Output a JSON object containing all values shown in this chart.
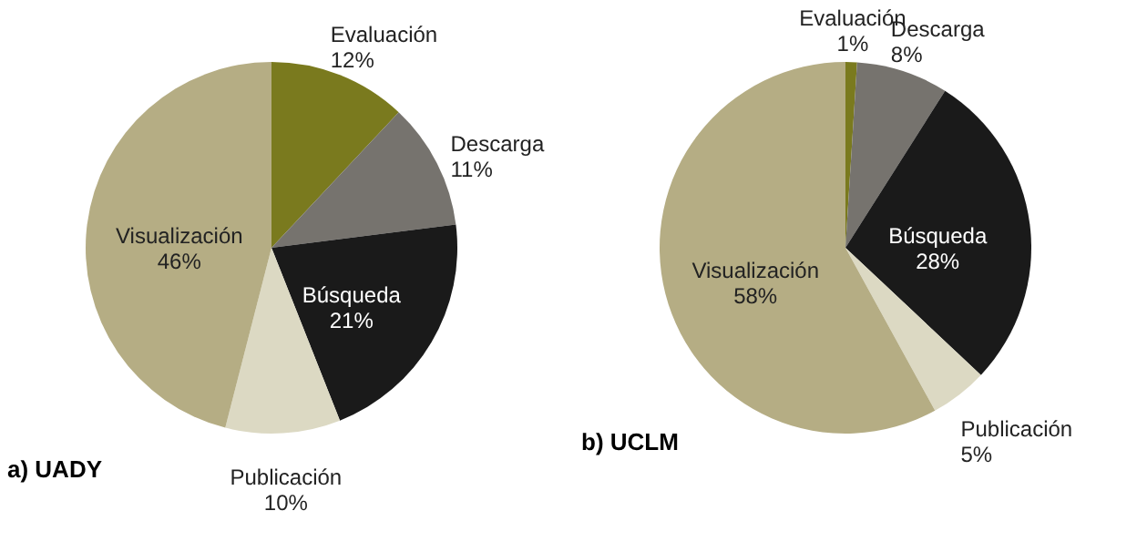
{
  "chart_data": [
    {
      "type": "pie",
      "title": "a) UADY",
      "categories": [
        "Evaluación",
        "Descarga",
        "Búsqueda",
        "Publicación",
        "Visualización"
      ],
      "values": [
        12,
        11,
        21,
        10,
        46
      ],
      "value_labels": [
        "12%",
        "11%",
        "21%",
        "10%",
        "46%"
      ],
      "colors": [
        "#7a7a1e",
        "#76736e",
        "#1a1a1a",
        "#dcd9c3",
        "#b5ad84"
      ],
      "legend": false
    },
    {
      "type": "pie",
      "title": "b) UCLM",
      "categories": [
        "Evaluación",
        "Descarga",
        "Búsqueda",
        "Publicación",
        "Visualización"
      ],
      "values": [
        1,
        8,
        28,
        5,
        58
      ],
      "value_labels": [
        "1%",
        "8%",
        "28%",
        "5%",
        "58%"
      ],
      "colors": [
        "#7a7a1e",
        "#76736e",
        "#1a1a1a",
        "#dcd9c3",
        "#b5ad84"
      ],
      "legend": false
    }
  ]
}
